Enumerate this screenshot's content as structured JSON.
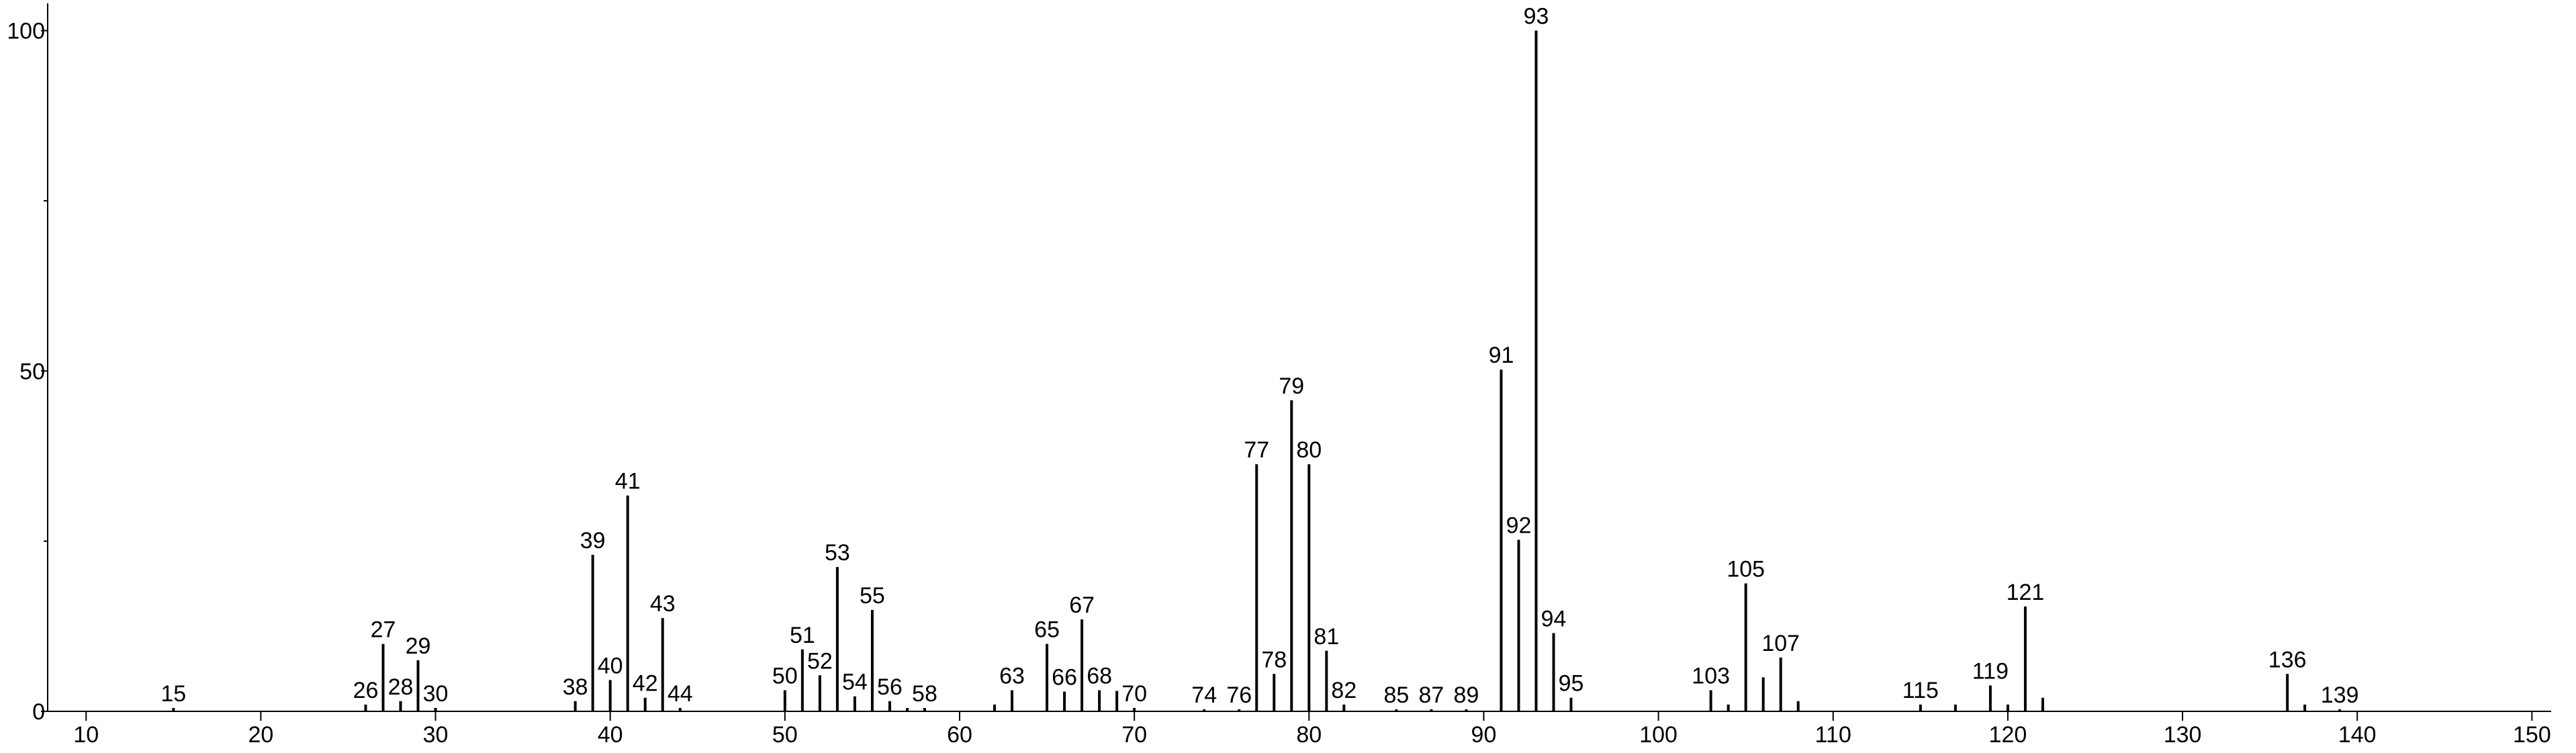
{
  "chart_data": {
    "type": "stick",
    "series": [
      {
        "color": "#000000",
        "labels": true,
        "x": [
          15,
          26,
          27,
          28,
          29,
          30,
          38,
          39,
          40,
          41,
          42,
          43,
          44,
          50,
          51,
          52,
          53,
          54,
          55,
          56,
          58,
          63,
          65,
          66,
          67,
          68,
          70,
          74,
          76,
          77,
          78,
          79,
          80,
          81,
          82,
          85,
          87,
          89,
          91,
          92,
          93,
          94,
          95,
          103,
          105,
          107,
          115,
          119,
          121,
          136,
          139
        ],
        "values": [
          0.5,
          1,
          9.9,
          1.5,
          7.5,
          0.5,
          1.5,
          23,
          4.6,
          31.7,
          2,
          13.7,
          0.5,
          3.1,
          9.1,
          5.3,
          21.2,
          2.2,
          14.9,
          1.5,
          0.5,
          3.1,
          9.9,
          2.9,
          13.5,
          3.1,
          0.5,
          0.3,
          0.3,
          36.3,
          5.5,
          45.7,
          36.3,
          8.9,
          1,
          0.3,
          0.3,
          0.3,
          50.2,
          25.2,
          100,
          11.5,
          2,
          3.1,
          18.8,
          7.9,
          1,
          3.8,
          15.4,
          5.5,
          0.3
        ]
      },
      {
        "color": "#000000",
        "labels": false,
        "x": [
          57,
          62,
          69,
          104,
          106,
          108,
          117,
          120,
          122,
          137
        ],
        "values": [
          0.5,
          1,
          3,
          1,
          5,
          1.5,
          1,
          1,
          2,
          1
        ]
      }
    ],
    "xlim": [
      7.8,
      151.1
    ],
    "ylim": [
      0,
      104
    ],
    "xticks": [
      10,
      20,
      30,
      40,
      50,
      60,
      70,
      80,
      90,
      100,
      110,
      120,
      130,
      140,
      150
    ],
    "yticks": [
      0,
      50,
      100
    ],
    "yminorticks": [
      25,
      75
    ]
  }
}
